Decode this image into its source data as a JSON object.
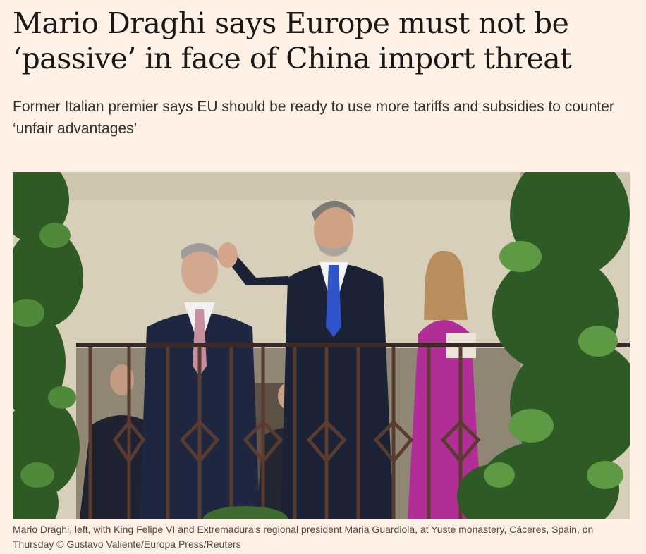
{
  "article": {
    "headline": "Mario Draghi says Europe must not be ‘passive’ in face of China import threat",
    "standfirst": "Former Italian premier says EU should be ready to use more tariffs and subsidies to counter ‘unfair advantages’",
    "caption": "Mario Draghi, left, with King Felipe VI and Extremadura’s regional president Maria Guardiola, at Yuste monastery, Cáceres, Spain, on Thursday",
    "credit": "© Gustavo Valiente/Europa Press/Reuters"
  },
  "colors": {
    "page_background": "#FFF1E5",
    "headline_text": "#1A1817",
    "body_text": "#33302E"
  }
}
